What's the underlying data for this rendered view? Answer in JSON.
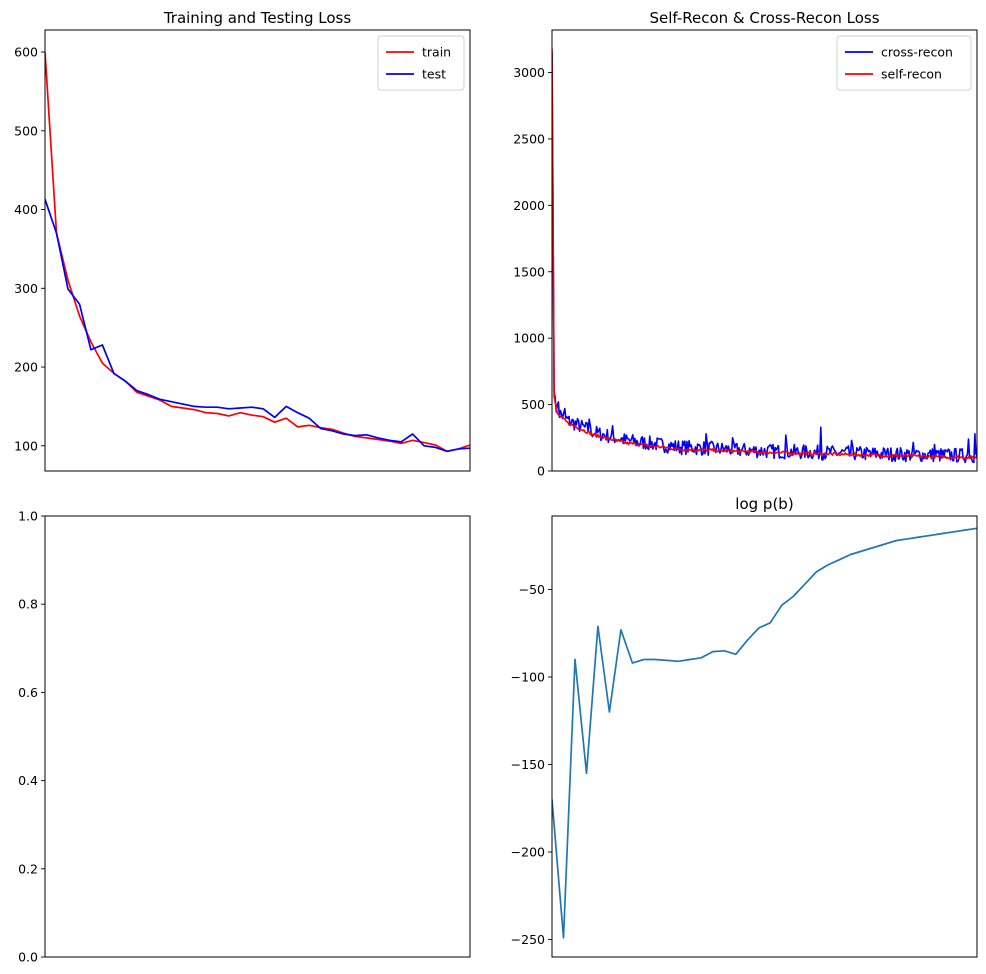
{
  "colors": {
    "train": "#ff0000",
    "test": "#0000ff",
    "cross_recon": "#0000ff",
    "self_recon": "#ff0000",
    "logpb": "#1f77b4"
  },
  "chart_data": [
    {
      "type": "line",
      "title": "Training and Testing Loss",
      "ylim": [
        68,
        628
      ],
      "yticks": [
        100,
        200,
        300,
        400,
        500,
        600
      ],
      "xlim": [
        0,
        37
      ],
      "legend": "top-right",
      "series": [
        {
          "name": "train",
          "color": "#ff0000",
          "x": [
            0,
            1,
            2,
            3,
            4,
            5,
            6,
            7,
            8,
            9,
            10,
            11,
            12,
            13,
            14,
            15,
            16,
            17,
            18,
            19,
            20,
            21,
            22,
            23,
            24,
            25,
            26,
            27,
            28,
            29,
            30,
            31,
            32,
            33,
            34,
            35,
            36,
            37
          ],
          "y": [
            600,
            370,
            310,
            265,
            232,
            205,
            192,
            182,
            168,
            163,
            158,
            150,
            148,
            146,
            142,
            141,
            138,
            142,
            139,
            137,
            130,
            135,
            124,
            126,
            123,
            121,
            116,
            112,
            110,
            108,
            106,
            103,
            107,
            104,
            101,
            93,
            96,
            101
          ]
        },
        {
          "name": "test",
          "color": "#0000ff",
          "x": [
            0,
            1,
            2,
            3,
            4,
            5,
            6,
            7,
            8,
            9,
            10,
            11,
            12,
            13,
            14,
            15,
            16,
            17,
            18,
            19,
            20,
            21,
            22,
            23,
            24,
            25,
            26,
            27,
            28,
            29,
            30,
            31,
            32,
            33,
            34,
            35,
            36,
            37
          ],
          "y": [
            413,
            370,
            299,
            280,
            222,
            228,
            192,
            182,
            170,
            165,
            159,
            156,
            153,
            150,
            149,
            149,
            147,
            148,
            149,
            147,
            136,
            150,
            142,
            135,
            122,
            119,
            115,
            113,
            114,
            110,
            107,
            105,
            115,
            100,
            98,
            93,
            96,
            97
          ]
        }
      ]
    },
    {
      "type": "line",
      "title": "Self-Recon & Cross-Recon Loss",
      "ylim": [
        0,
        3320
      ],
      "yticks": [
        0,
        500,
        1000,
        1500,
        2000,
        2500,
        3000
      ],
      "xlim": [
        0,
        400
      ],
      "legend": "top-right",
      "series": [
        {
          "name": "cross-recon",
          "color": "#0000ff",
          "noisy": true,
          "base": [
            [
              0,
              3150
            ],
            [
              2,
              600
            ],
            [
              5,
              450
            ],
            [
              15,
              380
            ],
            [
              40,
              290
            ],
            [
              70,
              230
            ],
            [
              120,
              180
            ],
            [
              200,
              150
            ],
            [
              300,
              130
            ],
            [
              400,
              115
            ]
          ],
          "noise": 55,
          "spikes": [
            [
              6,
              520
            ],
            [
              12,
              470
            ],
            [
              35,
              390
            ],
            [
              57,
              340
            ],
            [
              145,
              280
            ],
            [
              170,
              250
            ],
            [
              220,
              270
            ],
            [
              253,
              330
            ],
            [
              282,
              230
            ],
            [
              340,
              215
            ],
            [
              360,
              200
            ],
            [
              392,
              240
            ],
            [
              398,
              280
            ]
          ]
        },
        {
          "name": "self-recon",
          "color": "#ff0000",
          "noisy": true,
          "base": [
            [
              0,
              3180
            ],
            [
              2,
              560
            ],
            [
              5,
              430
            ],
            [
              15,
              360
            ],
            [
              40,
              270
            ],
            [
              70,
              210
            ],
            [
              120,
              165
            ],
            [
              200,
              140
            ],
            [
              300,
              120
            ],
            [
              400,
              100
            ]
          ],
          "noise": 12,
          "spikes": []
        }
      ]
    },
    {
      "type": "line",
      "title": "",
      "ylim": [
        0.0,
        1.0
      ],
      "yticks": [
        0.0,
        0.2,
        0.4,
        0.6,
        0.8,
        1.0
      ],
      "ytick_labels": [
        "0.0",
        "0.2",
        "0.4",
        "0.6",
        "0.8",
        "1.0"
      ],
      "series": []
    },
    {
      "type": "line",
      "title": "log p(b)",
      "ylim": [
        -260,
        -8
      ],
      "yticks": [
        -250,
        -200,
        -150,
        -100,
        -50
      ],
      "ytick_labels": [
        "−250",
        "−200",
        "−150",
        "−100",
        "−50"
      ],
      "xlim": [
        0,
        37
      ],
      "series": [
        {
          "name": "",
          "color": "#1f77b4",
          "x": [
            0,
            1,
            2,
            3,
            4,
            5,
            6,
            7,
            8,
            9,
            10,
            11,
            12,
            13,
            14,
            15,
            16,
            17,
            18,
            19,
            20,
            21,
            22,
            23,
            24,
            25,
            26,
            27,
            28,
            29,
            30,
            31,
            32,
            33,
            34,
            35,
            36,
            37
          ],
          "y": [
            -170,
            -249,
            -90,
            -155,
            -71,
            -120,
            -73,
            -92,
            -90,
            -90,
            -90.5,
            -91,
            -90,
            -89,
            -85.5,
            -85,
            -87,
            -79,
            -72,
            -69,
            -59,
            -54,
            -47,
            -40,
            -36,
            -33,
            -30,
            -28,
            -26,
            -24,
            -22,
            -21,
            -20,
            -19,
            -18,
            -17,
            -16,
            -15
          ]
        }
      ]
    }
  ]
}
